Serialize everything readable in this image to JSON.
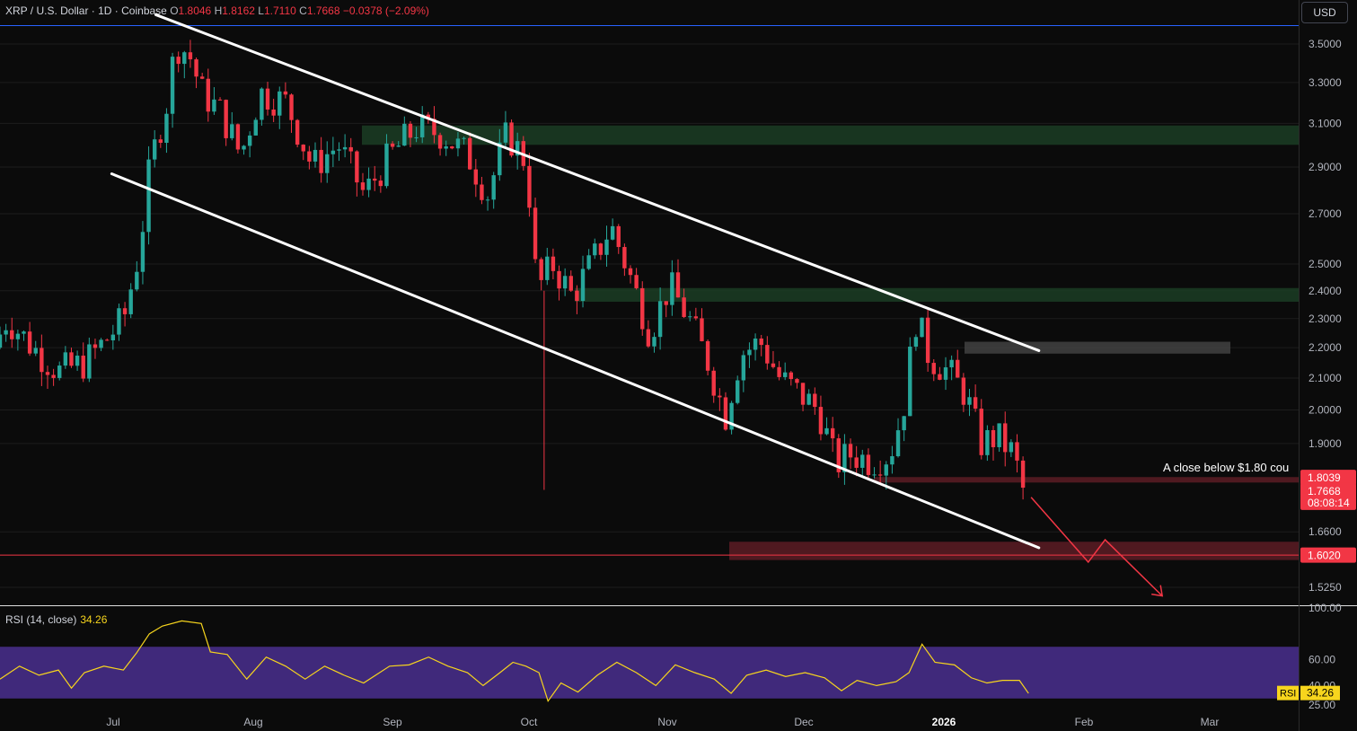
{
  "legend": {
    "symbol": "XRP / U.S. Dollar · 1D · Coinbase",
    "o_label": "O",
    "o": "1.8046",
    "h_label": "H",
    "h": "1.8162",
    "l_label": "L",
    "l": "1.7110",
    "c_label": "C",
    "c": "1.7668",
    "change": "−0.0378 (−2.09%)"
  },
  "currency": "USD",
  "annotation_text": "A close below $1.80 cou",
  "rsi": {
    "label": "RSI (14, close)",
    "value": "34.26",
    "tag": "RSI"
  },
  "countdown": "08:08:14",
  "colors": {
    "up": "#26a69a",
    "down": "#f23645",
    "rsi": "#f7d51d",
    "rsi_band": "#4a2f8f",
    "zone_green": "#1b3d24",
    "zone_red": "#5c1c24",
    "zone_gray": "#4a4a4a",
    "line_blue": "#2962ff"
  },
  "chart_data": [
    {
      "type": "candlestick",
      "title": "XRP / U.S. Dollar · 1D · Coinbase",
      "x_ticks": [
        "Jul",
        "Aug",
        "Sep",
        "Oct",
        "Nov",
        "Dec",
        "2026",
        "Feb",
        "Mar"
      ],
      "y_ticks": [
        3.5,
        3.3,
        3.1,
        2.9,
        2.7,
        2.5,
        2.4,
        2.3,
        2.2,
        2.1,
        2.0,
        1.9,
        1.66,
        1.525
      ],
      "ylim": [
        1.5,
        3.65
      ],
      "scale": "log",
      "price_labels": [
        {
          "value": "1.8039",
          "color": "#f23645"
        },
        {
          "value": "1.7668",
          "color": "#f23645"
        },
        {
          "value": "1.6020",
          "color": "#f23645"
        }
      ],
      "horizontal_lines": [
        {
          "value": 3.6,
          "color": "#2962ff"
        },
        {
          "value": 1.602,
          "color": "#f23645"
        }
      ],
      "zones": [
        {
          "y_from": 3.0,
          "y_to": 3.09,
          "x_from": "Sep",
          "x_to": "right-edge",
          "color": "green"
        },
        {
          "y_from": 2.36,
          "y_to": 2.41,
          "x_from": "Oct",
          "x_to": "right-edge",
          "color": "green"
        },
        {
          "y_from": 2.18,
          "y_to": 2.22,
          "x_from": "2026",
          "x_to": "Feb",
          "color": "gray"
        },
        {
          "y_from": 1.79,
          "y_to": 1.805,
          "x_from": "Dec",
          "x_to": "right-edge",
          "color": "red"
        },
        {
          "y_from": 1.59,
          "y_to": 1.635,
          "x_from": "Nov",
          "x_to": "right-edge",
          "color": "red"
        }
      ],
      "trendlines": [
        {
          "name": "channel-upper",
          "from": {
            "t": 0.12,
            "price": 3.66
          },
          "to": {
            "t": 0.8,
            "price": 2.19
          }
        },
        {
          "name": "channel-lower",
          "from": {
            "t": 0.086,
            "price": 2.87
          },
          "to": {
            "t": 0.8,
            "price": 1.62
          }
        }
      ],
      "projection": [
        {
          "t": 0.794,
          "price": 1.75
        },
        {
          "t": 0.838,
          "price": 1.585
        },
        {
          "t": 0.851,
          "price": 1.64
        },
        {
          "t": 0.895,
          "price": 1.505
        }
      ],
      "candles_summary": {
        "points": [
          {
            "t": 0.0,
            "price": 2.2
          },
          {
            "t": 0.01,
            "price": 2.3
          },
          {
            "t": 0.03,
            "price": 2.2
          },
          {
            "t": 0.05,
            "price": 2.12
          },
          {
            "t": 0.07,
            "price": 2.15
          },
          {
            "t": 0.085,
            "price": 2.22
          },
          {
            "t": 0.1,
            "price": 2.3
          },
          {
            "t": 0.112,
            "price": 2.55
          },
          {
            "t": 0.12,
            "price": 2.9
          },
          {
            "t": 0.133,
            "price": 3.2
          },
          {
            "t": 0.14,
            "price": 3.5
          },
          {
            "t": 0.15,
            "price": 3.45
          },
          {
            "t": 0.16,
            "price": 3.25
          },
          {
            "t": 0.175,
            "price": 3.15
          },
          {
            "t": 0.19,
            "price": 2.95
          },
          {
            "t": 0.205,
            "price": 3.25
          },
          {
            "t": 0.225,
            "price": 3.2
          },
          {
            "t": 0.245,
            "price": 2.9
          },
          {
            "t": 0.265,
            "price": 3.0
          },
          {
            "t": 0.285,
            "price": 2.78
          },
          {
            "t": 0.305,
            "price": 2.95
          },
          {
            "t": 0.325,
            "price": 3.08
          },
          {
            "t": 0.345,
            "price": 3.05
          },
          {
            "t": 0.365,
            "price": 2.95
          },
          {
            "t": 0.38,
            "price": 2.78
          },
          {
            "t": 0.395,
            "price": 3.05
          },
          {
            "t": 0.41,
            "price": 2.92
          },
          {
            "t": 0.418,
            "price": 2.4
          },
          {
            "t": 0.43,
            "price": 2.5
          },
          {
            "t": 0.445,
            "price": 2.38
          },
          {
            "t": 0.46,
            "price": 2.5
          },
          {
            "t": 0.475,
            "price": 2.65
          },
          {
            "t": 0.49,
            "price": 2.45
          },
          {
            "t": 0.505,
            "price": 2.25
          },
          {
            "t": 0.52,
            "price": 2.42
          },
          {
            "t": 0.535,
            "price": 2.3
          },
          {
            "t": 0.55,
            "price": 2.15
          },
          {
            "t": 0.563,
            "price": 1.98
          },
          {
            "t": 0.575,
            "price": 2.18
          },
          {
            "t": 0.59,
            "price": 2.22
          },
          {
            "t": 0.605,
            "price": 2.1
          },
          {
            "t": 0.62,
            "price": 2.05
          },
          {
            "t": 0.635,
            "price": 2.0
          },
          {
            "t": 0.648,
            "price": 1.84
          },
          {
            "t": 0.66,
            "price": 1.87
          },
          {
            "t": 0.675,
            "price": 1.85
          },
          {
            "t": 0.69,
            "price": 1.87
          },
          {
            "t": 0.7,
            "price": 2.0
          },
          {
            "t": 0.71,
            "price": 2.3
          },
          {
            "t": 0.72,
            "price": 2.17
          },
          {
            "t": 0.735,
            "price": 2.12
          },
          {
            "t": 0.748,
            "price": 2.05
          },
          {
            "t": 0.76,
            "price": 1.9
          },
          {
            "t": 0.772,
            "price": 1.92
          },
          {
            "t": 0.785,
            "price": 1.87
          },
          {
            "t": 0.792,
            "price": 1.77
          }
        ]
      }
    },
    {
      "type": "line",
      "title": "RSI (14, close)",
      "y_ticks": [
        100.0,
        60.0,
        40.0,
        25.0
      ],
      "band": [
        30,
        70
      ],
      "ylim": [
        20,
        100
      ],
      "points": [
        {
          "t": 0.0,
          "v": 45
        },
        {
          "t": 0.015,
          "v": 55
        },
        {
          "t": 0.03,
          "v": 48
        },
        {
          "t": 0.045,
          "v": 52
        },
        {
          "t": 0.055,
          "v": 38
        },
        {
          "t": 0.065,
          "v": 50
        },
        {
          "t": 0.08,
          "v": 55
        },
        {
          "t": 0.095,
          "v": 52
        },
        {
          "t": 0.105,
          "v": 65
        },
        {
          "t": 0.115,
          "v": 80
        },
        {
          "t": 0.125,
          "v": 86
        },
        {
          "t": 0.14,
          "v": 90
        },
        {
          "t": 0.155,
          "v": 88
        },
        {
          "t": 0.162,
          "v": 66
        },
        {
          "t": 0.175,
          "v": 64
        },
        {
          "t": 0.19,
          "v": 45
        },
        {
          "t": 0.205,
          "v": 62
        },
        {
          "t": 0.22,
          "v": 55
        },
        {
          "t": 0.235,
          "v": 45
        },
        {
          "t": 0.25,
          "v": 55
        },
        {
          "t": 0.265,
          "v": 48
        },
        {
          "t": 0.28,
          "v": 42
        },
        {
          "t": 0.3,
          "v": 55
        },
        {
          "t": 0.315,
          "v": 56
        },
        {
          "t": 0.33,
          "v": 62
        },
        {
          "t": 0.345,
          "v": 55
        },
        {
          "t": 0.36,
          "v": 50
        },
        {
          "t": 0.372,
          "v": 40
        },
        {
          "t": 0.385,
          "v": 50
        },
        {
          "t": 0.395,
          "v": 58
        },
        {
          "t": 0.405,
          "v": 55
        },
        {
          "t": 0.415,
          "v": 50
        },
        {
          "t": 0.422,
          "v": 28
        },
        {
          "t": 0.432,
          "v": 42
        },
        {
          "t": 0.445,
          "v": 35
        },
        {
          "t": 0.46,
          "v": 48
        },
        {
          "t": 0.475,
          "v": 58
        },
        {
          "t": 0.49,
          "v": 50
        },
        {
          "t": 0.505,
          "v": 40
        },
        {
          "t": 0.52,
          "v": 56
        },
        {
          "t": 0.535,
          "v": 50
        },
        {
          "t": 0.55,
          "v": 45
        },
        {
          "t": 0.563,
          "v": 34
        },
        {
          "t": 0.575,
          "v": 48
        },
        {
          "t": 0.59,
          "v": 52
        },
        {
          "t": 0.605,
          "v": 47
        },
        {
          "t": 0.62,
          "v": 50
        },
        {
          "t": 0.635,
          "v": 46
        },
        {
          "t": 0.648,
          "v": 36
        },
        {
          "t": 0.66,
          "v": 44
        },
        {
          "t": 0.675,
          "v": 40
        },
        {
          "t": 0.69,
          "v": 43
        },
        {
          "t": 0.7,
          "v": 50
        },
        {
          "t": 0.71,
          "v": 72
        },
        {
          "t": 0.72,
          "v": 58
        },
        {
          "t": 0.735,
          "v": 56
        },
        {
          "t": 0.748,
          "v": 46
        },
        {
          "t": 0.76,
          "v": 42
        },
        {
          "t": 0.772,
          "v": 44
        },
        {
          "t": 0.785,
          "v": 44
        },
        {
          "t": 0.792,
          "v": 34
        }
      ]
    }
  ]
}
